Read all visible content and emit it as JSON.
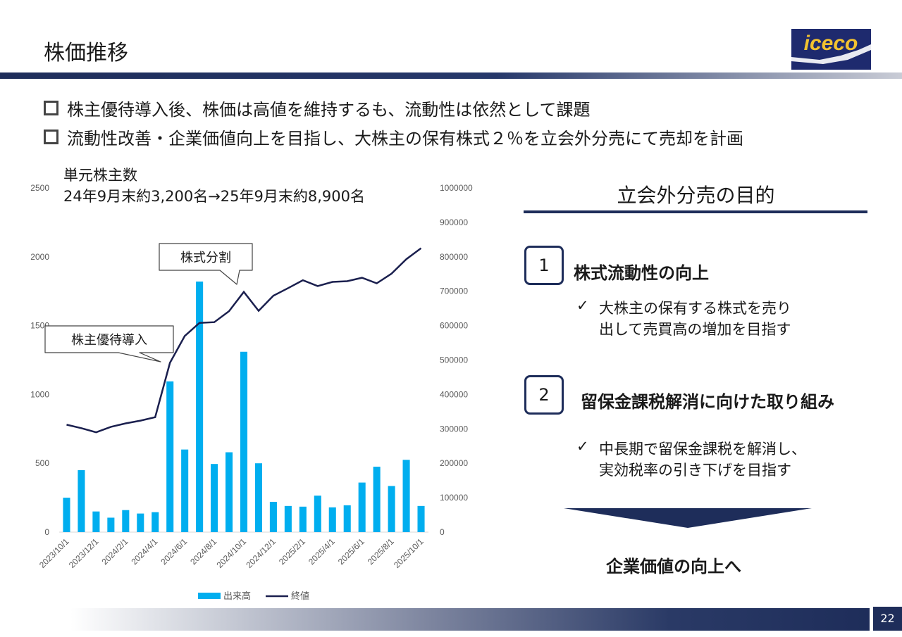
{
  "header": {
    "title": "株価推移",
    "logo_text": "iceco"
  },
  "bullets": [
    "株主優待導入後、株価は高値を維持するも、流動性は依然として課題",
    "流動性改善・企業価値向上を目指し、大株主の保有株式２％を立会外分売にて売却を計画"
  ],
  "chart_note": {
    "line1": "単元株主数",
    "line2": "24年9月末約3,200名→25年9月末約8,900名"
  },
  "callouts": {
    "split": "株式分割",
    "benefit": "株主優待導入"
  },
  "purpose": {
    "title": "立会外分売の目的",
    "items": [
      {
        "number": "1",
        "heading": "株式流動性の向上",
        "check": "✓",
        "desc_line1": "大株主の保有する株式を売り",
        "desc_line2": "出して売買高の増加を目指す"
      },
      {
        "number": "2",
        "heading": "留保金課税解消に向けた取り組み",
        "check": "✓",
        "desc_line1": "中長期で留保金課税を解消し、",
        "desc_line2": "実効税率の引き下げを目指す"
      }
    ],
    "conclusion": "企業価値の向上へ"
  },
  "footer": {
    "page_number": "22"
  },
  "colors": {
    "navy": "#1e2d5a",
    "bar": "#00aeef",
    "line": "#1a1f4e"
  },
  "chart_data": {
    "type": "bar",
    "categories": [
      "2023/10/1",
      "2023/11/1",
      "2023/12/1",
      "2024/1/1",
      "2024/2/1",
      "2024/3/1",
      "2024/4/1",
      "2024/5/1",
      "2024/6/1",
      "2024/7/1",
      "2024/8/1",
      "2024/9/1",
      "2024/10/1",
      "2024/11/1",
      "2024/12/1",
      "2025/1/1",
      "2025/2/1",
      "2025/3/1",
      "2025/4/1",
      "2025/5/1",
      "2025/6/1",
      "2025/7/1",
      "2025/8/1",
      "2025/9/1",
      "2025/10/1"
    ],
    "x_tick_labels": [
      "2023/10/1",
      "2023/12/1",
      "2024/2/1",
      "2024/4/1",
      "2024/6/1",
      "2024/8/1",
      "2024/10/1",
      "2024/12/1",
      "2025/2/1",
      "2025/4/1",
      "2025/6/1",
      "2025/8/1",
      "2025/10/1"
    ],
    "series": [
      {
        "name": "出来高",
        "type": "bar",
        "axis": "left",
        "values": [
          250,
          450,
          150,
          105,
          160,
          135,
          145,
          1095,
          600,
          1820,
          495,
          580,
          1310,
          500,
          220,
          190,
          185,
          265,
          180,
          195,
          360,
          475,
          335,
          525,
          190
        ]
      },
      {
        "name": "終値",
        "type": "line",
        "axis": "right",
        "values": [
          312000,
          302000,
          290000,
          306000,
          316000,
          324000,
          334000,
          492000,
          570000,
          608000,
          610000,
          642000,
          698000,
          643000,
          687000,
          709000,
          732000,
          715000,
          727000,
          729000,
          739000,
          723000,
          751000,
          793000,
          825000
        ]
      }
    ],
    "y_left": {
      "min": 0,
      "max": 2500,
      "ticks": [
        0,
        500,
        1000,
        1500,
        2000,
        2500
      ]
    },
    "y_right": {
      "min": 0,
      "max": 1000000,
      "ticks": [
        0,
        100000,
        200000,
        300000,
        400000,
        500000,
        600000,
        700000,
        800000,
        900000,
        1000000
      ]
    },
    "legend_position": "bottom",
    "grid": false
  }
}
